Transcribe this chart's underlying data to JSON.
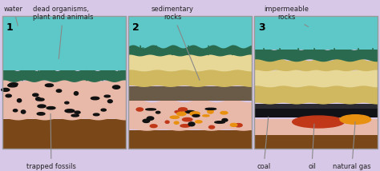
{
  "bg_color": "#d8c8e8",
  "water_color": "#5ec8c8",
  "seaweed_dark_color": "#2a6b50",
  "sand_light_color": "#e8d898",
  "sand_mid_color": "#d0b860",
  "dark_rock_color": "#6a5a48",
  "fossil_pink_color": "#e8b8a8",
  "soil_brown_color": "#7a4818",
  "coal_black_color": "#1a1a1a",
  "coal_dark_color": "#2a2a30",
  "oil_red_color": "#c03818",
  "gas_orange_color": "#e89010",
  "border_color": "#999999",
  "text_color": "#222222",
  "arrow_color": "#888888",
  "panel_numbers": [
    "1",
    "2",
    "3"
  ],
  "label_fontsize": 6.0,
  "num_fontsize": 9
}
